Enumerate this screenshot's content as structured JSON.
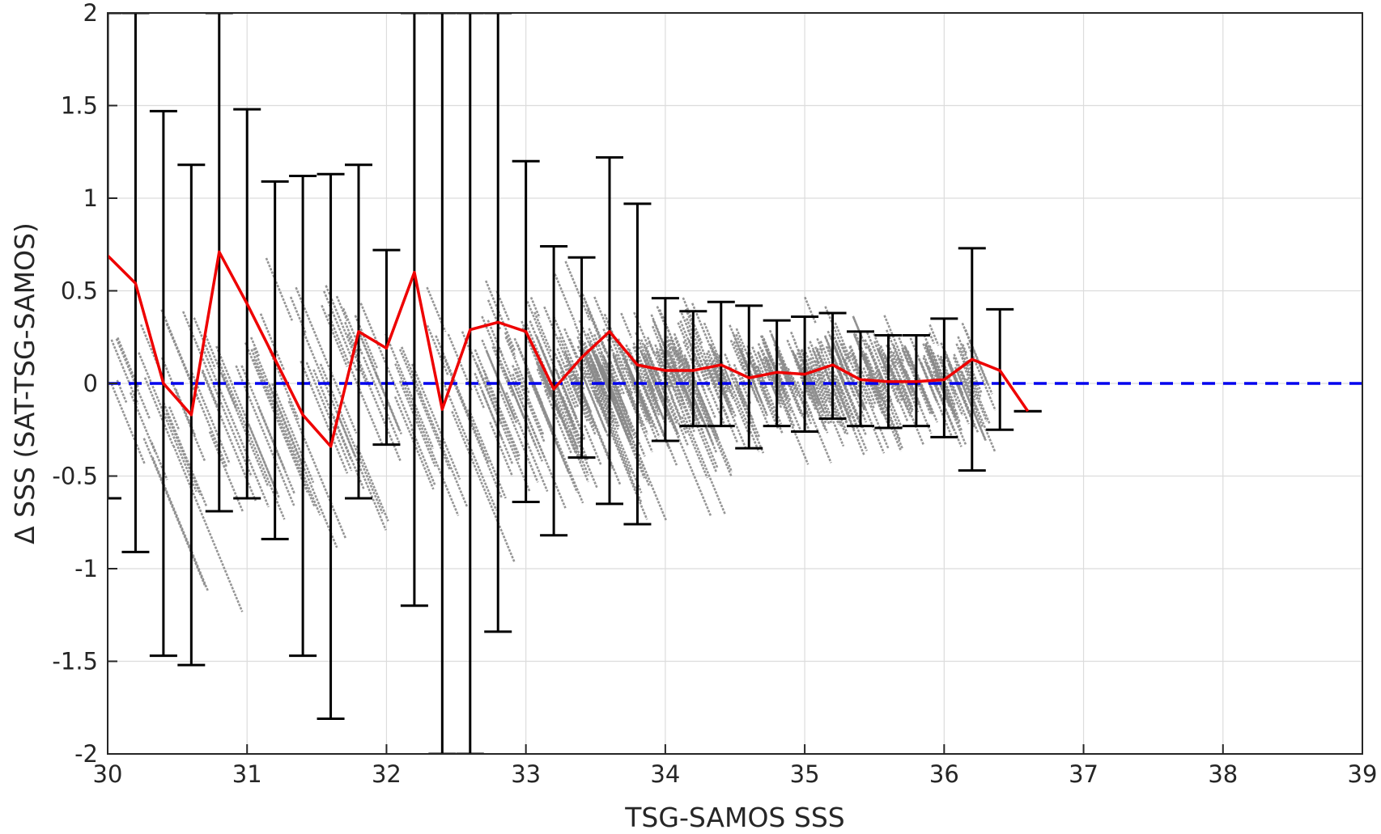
{
  "chart_data": {
    "type": "scatter",
    "title": "",
    "xlabel": "TSG-SAMOS SSS",
    "ylabel": "Δ SSS (SAT-TSG-SAMOS)",
    "xlim": [
      30,
      39
    ],
    "ylim": [
      -2,
      2
    ],
    "xticks": [
      "30",
      "31",
      "32",
      "33",
      "34",
      "35",
      "36",
      "37",
      "38",
      "39"
    ],
    "yticks": [
      "-2",
      "-1.5",
      "-1",
      "-0.5",
      "0",
      "0.5",
      "1",
      "1.5",
      "2"
    ],
    "grid": true,
    "reference_line": {
      "y": 0,
      "style": "dashed",
      "color": "#0000ee"
    },
    "scatter_color": "#8a8a8a",
    "scatter_description": "dense diagonal streaks of gray points with slope about -1",
    "mean_line_color": "#ee0000",
    "errorbar_color": "#000000",
    "bins": [
      {
        "x": 30.0,
        "mean": 0.69,
        "low": -0.62,
        "high": 2.0
      },
      {
        "x": 30.2,
        "mean": 0.54,
        "low": -0.91,
        "high": 2.0
      },
      {
        "x": 30.4,
        "mean": 0.0,
        "low": -1.47,
        "high": 1.47
      },
      {
        "x": 30.6,
        "mean": -0.17,
        "low": -1.52,
        "high": 1.18
      },
      {
        "x": 30.8,
        "mean": 0.71,
        "low": -0.69,
        "high": 2.0
      },
      {
        "x": 31.0,
        "mean": 0.43,
        "low": -0.62,
        "high": 1.48
      },
      {
        "x": 31.2,
        "mean": 0.13,
        "low": -0.84,
        "high": 1.09
      },
      {
        "x": 31.4,
        "mean": -0.17,
        "low": -1.47,
        "high": 1.12
      },
      {
        "x": 31.6,
        "mean": -0.34,
        "low": -1.81,
        "high": 1.13
      },
      {
        "x": 31.8,
        "mean": 0.28,
        "low": -0.62,
        "high": 1.18
      },
      {
        "x": 32.0,
        "mean": 0.19,
        "low": -0.33,
        "high": 0.72
      },
      {
        "x": 32.2,
        "mean": 0.6,
        "low": -1.2,
        "high": 2.0
      },
      {
        "x": 32.4,
        "mean": -0.14,
        "low": -2.0,
        "high": 2.0
      },
      {
        "x": 32.6,
        "mean": 0.29,
        "low": -2.0,
        "high": 2.0
      },
      {
        "x": 32.8,
        "mean": 0.33,
        "low": -1.34,
        "high": 2.0
      },
      {
        "x": 33.0,
        "mean": 0.28,
        "low": -0.64,
        "high": 1.2
      },
      {
        "x": 33.2,
        "mean": -0.03,
        "low": -0.82,
        "high": 0.74
      },
      {
        "x": 33.4,
        "mean": 0.14,
        "low": -0.4,
        "high": 0.68
      },
      {
        "x": 33.6,
        "mean": 0.28,
        "low": -0.65,
        "high": 1.22
      },
      {
        "x": 33.8,
        "mean": 0.1,
        "low": -0.76,
        "high": 0.97
      },
      {
        "x": 34.0,
        "mean": 0.07,
        "low": -0.31,
        "high": 0.46
      },
      {
        "x": 34.2,
        "mean": 0.07,
        "low": -0.23,
        "high": 0.39
      },
      {
        "x": 34.4,
        "mean": 0.1,
        "low": -0.23,
        "high": 0.44
      },
      {
        "x": 34.6,
        "mean": 0.03,
        "low": -0.35,
        "high": 0.42
      },
      {
        "x": 34.8,
        "mean": 0.06,
        "low": -0.23,
        "high": 0.34
      },
      {
        "x": 35.0,
        "mean": 0.05,
        "low": -0.26,
        "high": 0.36
      },
      {
        "x": 35.2,
        "mean": 0.1,
        "low": -0.19,
        "high": 0.38
      },
      {
        "x": 35.4,
        "mean": 0.02,
        "low": -0.23,
        "high": 0.28
      },
      {
        "x": 35.6,
        "mean": 0.01,
        "low": -0.24,
        "high": 0.26
      },
      {
        "x": 35.8,
        "mean": 0.01,
        "low": -0.23,
        "high": 0.26
      },
      {
        "x": 36.0,
        "mean": 0.02,
        "low": -0.29,
        "high": 0.35
      },
      {
        "x": 36.2,
        "mean": 0.13,
        "low": -0.47,
        "high": 0.73
      },
      {
        "x": 36.4,
        "mean": 0.07,
        "low": -0.25,
        "high": 0.4
      },
      {
        "x": 36.6,
        "mean": -0.15,
        "low": -0.15,
        "high": -0.15
      }
    ]
  }
}
